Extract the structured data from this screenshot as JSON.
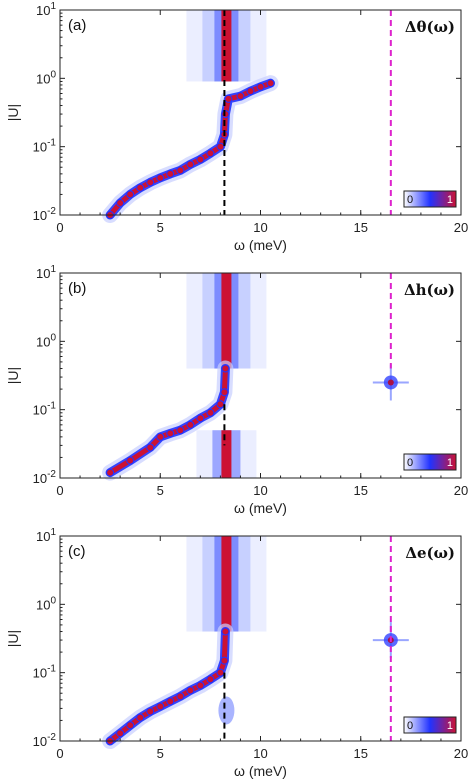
{
  "chart_data": [
    {
      "type": "heatmap",
      "panel_label": "(a)",
      "quantity": "Δθ(ω)",
      "xlabel": "ω (meV)",
      "ylabel": "|U|",
      "xlim": [
        0,
        20
      ],
      "ylim": [
        0.01,
        10
      ],
      "yscale": "log",
      "xticks": [
        "0",
        "5",
        "10",
        "15",
        "20"
      ],
      "yticks": [
        "10-2",
        "10-1",
        "100",
        "101"
      ],
      "colorbar": {
        "min_label": "0",
        "max_label": "1",
        "colors": [
          "#ffffff",
          "#2233ff",
          "#cc1133"
        ]
      },
      "reference_lines": [
        {
          "x": 8.2,
          "color": "#000000",
          "y_range": [
            0.01,
            10
          ]
        },
        {
          "x": 16.5,
          "color": "#dd22cc",
          "y_range": [
            0.01,
            10
          ]
        }
      ],
      "ridge": [
        [
          2.5,
          0.01
        ],
        [
          3.0,
          0.015
        ],
        [
          3.5,
          0.02
        ],
        [
          4.0,
          0.025
        ],
        [
          4.5,
          0.03
        ],
        [
          5.0,
          0.035
        ],
        [
          5.5,
          0.04
        ],
        [
          6.0,
          0.045
        ],
        [
          6.5,
          0.055
        ],
        [
          7.0,
          0.065
        ],
        [
          7.5,
          0.08
        ],
        [
          8.0,
          0.1
        ],
        [
          8.2,
          0.15
        ],
        [
          8.25,
          0.3
        ],
        [
          8.4,
          0.5
        ],
        [
          9.0,
          0.55
        ],
        [
          9.5,
          0.65
        ],
        [
          10.0,
          0.75
        ],
        [
          10.5,
          0.85
        ]
      ],
      "vertical_band": {
        "x": 8.3,
        "y_range": [
          0.9,
          10
        ]
      }
    },
    {
      "type": "heatmap",
      "panel_label": "(b)",
      "quantity": "Δh(ω)",
      "xlabel": "ω (meV)",
      "ylabel": "|U|",
      "xlim": [
        0,
        20
      ],
      "ylim": [
        0.01,
        10
      ],
      "yscale": "log",
      "xticks": [
        "0",
        "5",
        "10",
        "15",
        "20"
      ],
      "yticks": [
        "10-2",
        "10-1",
        "100",
        "101"
      ],
      "colorbar": {
        "min_label": "0",
        "max_label": "1",
        "colors": [
          "#ffffff",
          "#2233ff",
          "#cc1133"
        ]
      },
      "reference_lines": [
        {
          "x": 8.2,
          "color": "#000000",
          "y_range": [
            0.03,
            0.12
          ]
        },
        {
          "x": 16.5,
          "color": "#dd22cc",
          "y_range": [
            0.4,
            10
          ]
        }
      ],
      "ridge": [
        [
          2.5,
          0.012
        ],
        [
          3.5,
          0.018
        ],
        [
          4.5,
          0.028
        ],
        [
          5.0,
          0.04
        ],
        [
          5.5,
          0.045
        ],
        [
          6.0,
          0.05
        ],
        [
          6.5,
          0.06
        ],
        [
          7.0,
          0.075
        ],
        [
          7.5,
          0.09
        ],
        [
          8.0,
          0.12
        ],
        [
          8.2,
          0.18
        ],
        [
          8.25,
          0.4
        ]
      ],
      "vertical_band": {
        "x": 8.3,
        "y_range": [
          0.4,
          10
        ]
      },
      "secondary_band": {
        "x": 8.3,
        "y_range": [
          0.01,
          0.05
        ]
      },
      "spot": {
        "x": 16.5,
        "y": 0.25
      }
    },
    {
      "type": "heatmap",
      "panel_label": "(c)",
      "quantity": "Δe(ω)",
      "xlabel": "ω (meV)",
      "ylabel": "|U|",
      "xlim": [
        0,
        20
      ],
      "ylim": [
        0.01,
        10
      ],
      "yscale": "log",
      "xticks": [
        "0",
        "5",
        "10",
        "15",
        "20"
      ],
      "yticks": [
        "10-2",
        "10-1",
        "100",
        "101"
      ],
      "colorbar": {
        "min_label": "0",
        "max_label": "1",
        "colors": [
          "#ffffff",
          "#2233ff",
          "#cc1133"
        ]
      },
      "reference_lines": [
        {
          "x": 8.2,
          "color": "#000000",
          "y_range": [
            0.01,
            0.1
          ]
        },
        {
          "x": 16.5,
          "color": "#dd22cc",
          "y_range": [
            0.01,
            10
          ]
        }
      ],
      "ridge": [
        [
          2.5,
          0.01
        ],
        [
          3.0,
          0.013
        ],
        [
          3.5,
          0.017
        ],
        [
          4.0,
          0.022
        ],
        [
          4.5,
          0.027
        ],
        [
          5.0,
          0.032
        ],
        [
          5.5,
          0.038
        ],
        [
          6.0,
          0.045
        ],
        [
          6.5,
          0.055
        ],
        [
          7.0,
          0.065
        ],
        [
          7.5,
          0.08
        ],
        [
          8.0,
          0.1
        ],
        [
          8.2,
          0.15
        ],
        [
          8.25,
          0.4
        ]
      ],
      "vertical_band": {
        "x": 8.3,
        "y_range": [
          0.4,
          10
        ]
      },
      "spot": {
        "x": 16.5,
        "y": 0.3
      },
      "weak_spot": {
        "x": 8.3,
        "y": 0.028
      }
    }
  ]
}
